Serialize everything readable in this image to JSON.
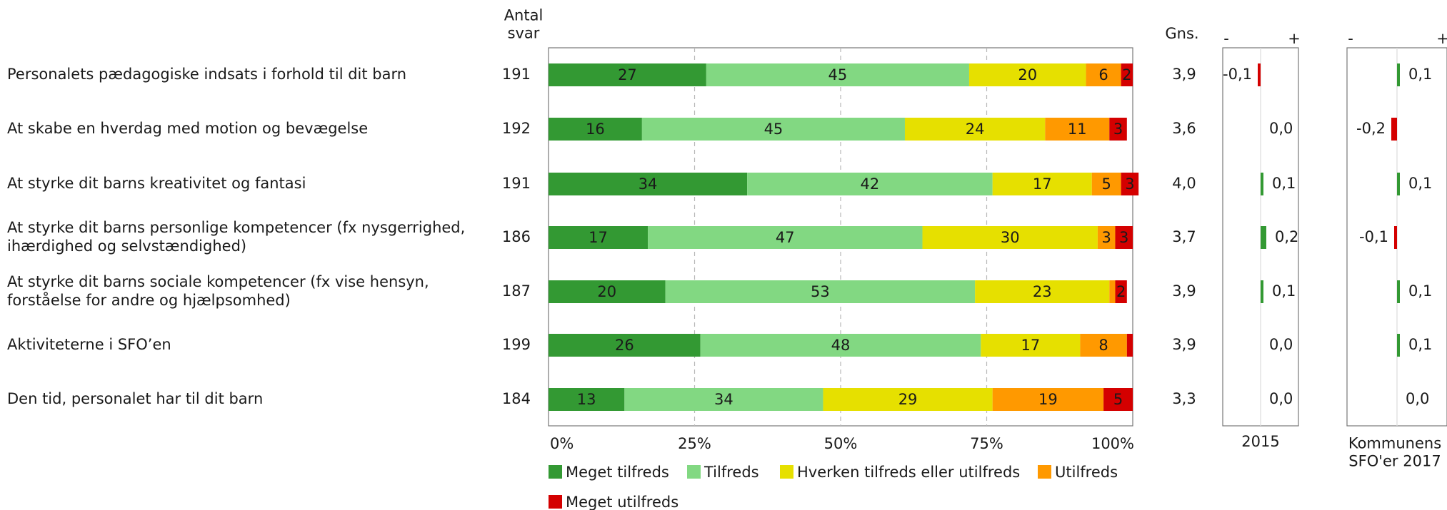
{
  "chart_data": {
    "type": "bar",
    "stacked": true,
    "orientation": "horizontal",
    "n_header": "Antal\nsvar",
    "avg_header": "Gns.",
    "categories": [
      "Personalets pædagogiske indsats i forhold til dit barn",
      "At skabe en hverdag med motion og bevægelse",
      "At styrke dit barns kreativitet og fantasi",
      "At styrke dit barns personlige kompetencer (fx nysgerrighed,\nihærdighed og selvstændighed)",
      "At styrke dit barns sociale kompetencer (fx vise hensyn,\nforståelse for andre og hjælpsomhed)",
      "Aktiviteterne i SFO’en",
      "Den tid, personalet har til dit barn"
    ],
    "n": [
      "191",
      "192",
      "191",
      "186",
      "187",
      "199",
      "184"
    ],
    "averages": [
      "3,9",
      "3,6",
      "4,0",
      "3,7",
      "3,9",
      "3,9",
      "3,3"
    ],
    "series": [
      {
        "name": "Meget tilfreds",
        "color": "#339933",
        "values": [
          27,
          16,
          34,
          17,
          20,
          26,
          13
        ]
      },
      {
        "name": "Tilfreds",
        "color": "#82d882",
        "values": [
          45,
          45,
          42,
          47,
          53,
          48,
          34
        ]
      },
      {
        "name": "Hverken tilfreds eller utilfreds",
        "color": "#e6e000",
        "values": [
          20,
          24,
          17,
          30,
          23,
          17,
          29
        ]
      },
      {
        "name": "Utilfreds",
        "color": "#ff9900",
        "values": [
          6,
          11,
          5,
          3,
          1,
          8,
          19
        ]
      },
      {
        "name": "Meget utilfreds",
        "color": "#d40000",
        "values": [
          2,
          3,
          3,
          3,
          2,
          1,
          5
        ]
      }
    ],
    "x_ticks": [
      "0%",
      "25%",
      "50%",
      "75%",
      "100%"
    ],
    "xlim": [
      0,
      100
    ],
    "grid": true,
    "legend_position": "bottom",
    "comparisons": [
      {
        "label": "2015",
        "minus": "-",
        "plus": "+",
        "values": [
          -0.1,
          0.0,
          0.1,
          0.2,
          0.1,
          0.0,
          0.0
        ],
        "labels": [
          "-0,1",
          "0,0",
          "0,1",
          "0,2",
          "0,1",
          "0,0",
          "0,0"
        ]
      },
      {
        "label": "Kommunens\nSFO'er 2017",
        "minus": "-",
        "plus": "+",
        "values": [
          0.1,
          -0.2,
          0.1,
          -0.1,
          0.1,
          0.1,
          0.0
        ],
        "labels": [
          "0,1",
          "-0,2",
          "0,1",
          "-0,1",
          "0,1",
          "0,1",
          "0,0"
        ]
      }
    ],
    "positive_color": "#339933",
    "negative_color": "#d40000"
  }
}
